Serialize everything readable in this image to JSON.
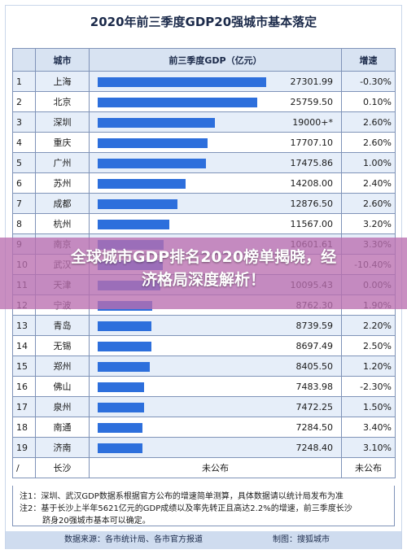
{
  "chart_data": {
    "type": "bar",
    "title": "2020年前三季度GDP20强城市基本落定",
    "columns": [
      "城市",
      "前三季度GDP（亿元）",
      "增速"
    ],
    "rows": [
      {
        "rank": "1",
        "city": "上海",
        "gdp": 27301.99,
        "gdp_label": "27301.99",
        "growth": "-0.30%"
      },
      {
        "rank": "2",
        "city": "北京",
        "gdp": 25759.5,
        "gdp_label": "25759.50",
        "growth": "0.10%"
      },
      {
        "rank": "3",
        "city": "深圳",
        "gdp": 19000,
        "gdp_label": "19000+*",
        "growth": "2.60%"
      },
      {
        "rank": "4",
        "city": "重庆",
        "gdp": 17707.1,
        "gdp_label": "17707.10",
        "growth": "2.60%"
      },
      {
        "rank": "5",
        "city": "广州",
        "gdp": 17475.86,
        "gdp_label": "17475.86",
        "growth": "1.00%"
      },
      {
        "rank": "6",
        "city": "苏州",
        "gdp": 14208.0,
        "gdp_label": "14208.00",
        "growth": "2.40%"
      },
      {
        "rank": "7",
        "city": "成都",
        "gdp": 12876.5,
        "gdp_label": "12876.50",
        "growth": "2.60%"
      },
      {
        "rank": "8",
        "city": "杭州",
        "gdp": 11567.0,
        "gdp_label": "11567.00",
        "growth": "3.20%"
      },
      {
        "rank": "9",
        "city": "南京",
        "gdp": 10601.61,
        "gdp_label": "10601.61",
        "growth": "3.30%"
      },
      {
        "rank": "10",
        "city": "武汉",
        "gdp": 10498,
        "gdp_label": "",
        "growth": "-10.40%"
      },
      {
        "rank": "11",
        "city": "天津",
        "gdp": 10095.43,
        "gdp_label": "10095.43",
        "growth": "0.00%"
      },
      {
        "rank": "12",
        "city": "宁波",
        "gdp": 8762.3,
        "gdp_label": "8762.30",
        "growth": "1.90%"
      },
      {
        "rank": "13",
        "city": "青岛",
        "gdp": 8739.59,
        "gdp_label": "8739.59",
        "growth": "2.20%"
      },
      {
        "rank": "14",
        "city": "无锡",
        "gdp": 8697.49,
        "gdp_label": "8697.49",
        "growth": "2.50%"
      },
      {
        "rank": "15",
        "city": "郑州",
        "gdp": 8405.5,
        "gdp_label": "8405.50",
        "growth": "1.20%"
      },
      {
        "rank": "16",
        "city": "佛山",
        "gdp": 7483.98,
        "gdp_label": "7483.98",
        "growth": "-2.30%"
      },
      {
        "rank": "17",
        "city": "泉州",
        "gdp": 7472.25,
        "gdp_label": "7472.25",
        "growth": "1.50%"
      },
      {
        "rank": "18",
        "city": "南通",
        "gdp": 7284.5,
        "gdp_label": "7284.50",
        "growth": "3.40%"
      },
      {
        "rank": "19",
        "city": "济南",
        "gdp": 7248.4,
        "gdp_label": "7248.40",
        "growth": "3.10%"
      },
      {
        "rank": "/",
        "city": "长沙",
        "gdp": null,
        "gdp_label": "未公布",
        "growth": "未公布"
      }
    ],
    "xlim": [
      0,
      30000
    ],
    "bar_color": "#2d6fdc"
  },
  "notes": {
    "line1": "注1：深圳、武汉GDP数据系根据官方公布的增速简单测算，具体数据请以统计局发布为准",
    "line2a": "注2：基于长沙上半年5621亿元的GDP成绩以及率先转正且高达2.2%的增速，前三季度长沙",
    "line2b": "跻身20强城市基本可以确定。"
  },
  "footer": {
    "source": "数据来源：各市统计局、各市官方报道",
    "maker": "制图：搜狐城市"
  },
  "headline": {
    "line1": "全球城市GDP排名2020榜单揭晓，经",
    "line2": "济格局深度解析！"
  },
  "colors": {
    "header_bg": "#d8e3f2",
    "alt_row_bg": "#e6eef9",
    "overlay": "#ba6eb0",
    "footer_bg": "#cfdcef"
  }
}
